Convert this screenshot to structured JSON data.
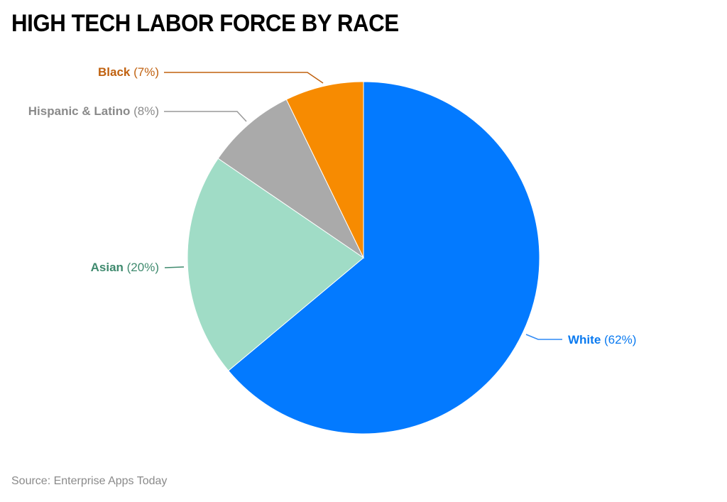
{
  "title": "HIGH TECH LABOR FORCE BY RACE",
  "source": "Source: Enterprise Apps Today",
  "labels": [
    {
      "name": "White",
      "pct": "(62%)",
      "color": "#0a7af0"
    },
    {
      "name": "Asian",
      "pct": "(20%)",
      "color": "#3f8a6e"
    },
    {
      "name": "Hispanic & Latino",
      "pct": "(8%)",
      "color": "#8a8a8a"
    },
    {
      "name": "Black",
      "pct": "(7%)",
      "color": "#c0610f"
    }
  ],
  "chart_data": {
    "type": "pie",
    "title": "HIGH TECH LABOR FORCE BY RACE",
    "categories": [
      "White",
      "Asian",
      "Hispanic & Latino",
      "Black"
    ],
    "values": [
      62,
      20,
      8,
      7
    ],
    "unit": "%",
    "colors": [
      "#037aff",
      "#a0dcc6",
      "#aaaaaa",
      "#f78b01"
    ],
    "label_colors": [
      "#0a7af0",
      "#3f8a6e",
      "#8a8a8a",
      "#c0610f"
    ],
    "start_angle": "12 o'clock, clockwise",
    "legend": "none (outside data labels with leader lines)",
    "source": "Source: Enterprise Apps Today"
  }
}
